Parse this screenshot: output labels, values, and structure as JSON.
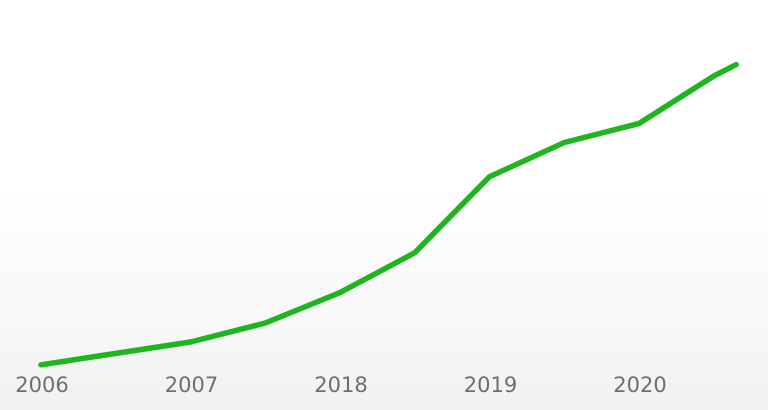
{
  "chart_data": {
    "type": "line",
    "categories": [
      "2006",
      "2007",
      "2018",
      "2019",
      "2020"
    ],
    "series": [
      {
        "color": "#1eb51e",
        "points": [
          {
            "x": 0.0,
            "y": 4.0
          },
          {
            "x": 0.5,
            "y": 7.0
          },
          {
            "x": 1.0,
            "y": 10.0
          },
          {
            "x": 1.5,
            "y": 15.0
          },
          {
            "x": 2.0,
            "y": 23.0
          },
          {
            "x": 2.5,
            "y": 33.5
          },
          {
            "x": 3.0,
            "y": 53.5
          },
          {
            "x": 3.5,
            "y": 62.5
          },
          {
            "x": 4.0,
            "y": 67.5
          },
          {
            "x": 4.5,
            "y": 80.0
          },
          {
            "x": 4.65,
            "y": 83.0
          }
        ]
      }
    ],
    "xlim": [
      0,
      4.65
    ],
    "ylim": [
      0,
      100
    ],
    "grid": false,
    "legend": "none"
  }
}
